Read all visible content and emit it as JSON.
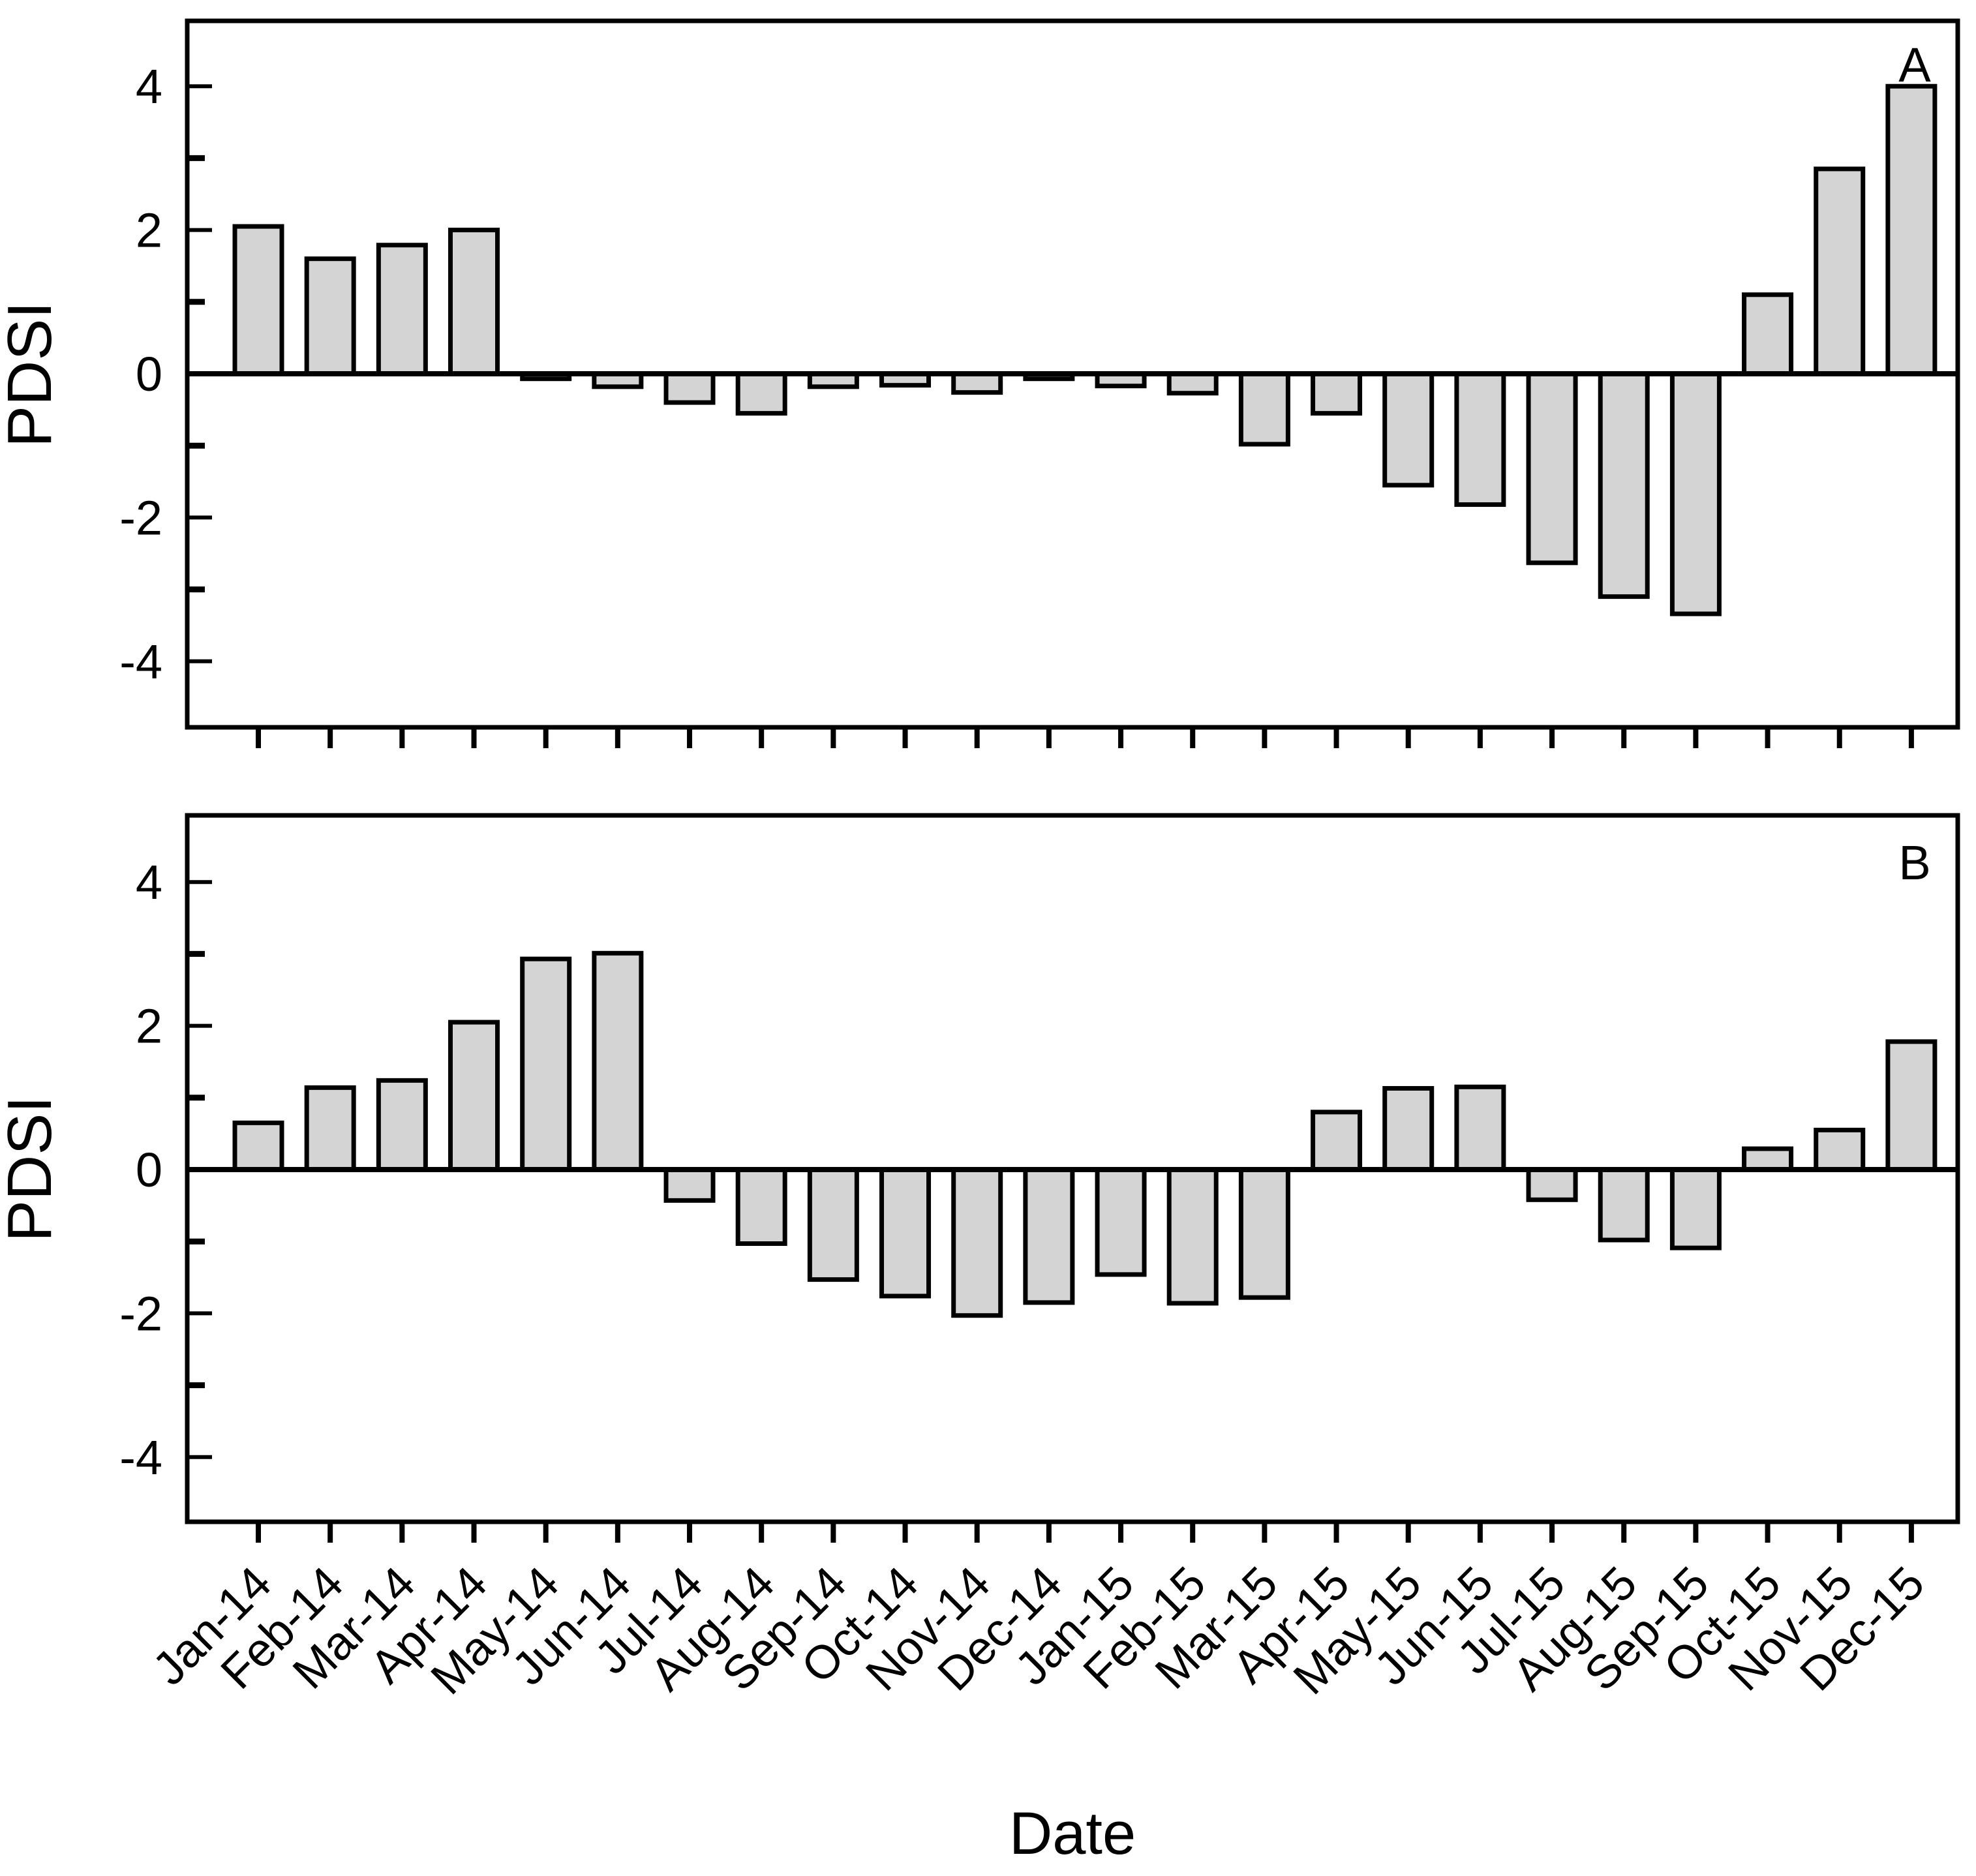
{
  "figure": {
    "panel_a_label": "A",
    "panel_b_label": "B",
    "y_axis_label_a": "PDSI",
    "y_axis_label_b": "PDSI",
    "x_axis_label": "Date",
    "colors": {
      "background": "#ffffff",
      "bar_fill": "#d4d4d4",
      "bar_stroke": "#000000",
      "axis": "#000000",
      "text": "#000000"
    }
  },
  "chart_data": [
    {
      "type": "bar",
      "panel": "A",
      "title": "",
      "xlabel": "Date",
      "ylabel": "PDSI",
      "ylim": [
        -5,
        5
      ],
      "grid": false,
      "legend": "none",
      "y_ticks_labeled": [
        -4,
        -2,
        0,
        2,
        4
      ],
      "y_ticks_minor": [
        -3,
        -1,
        1,
        3
      ],
      "y_tick_labels": [
        "-4",
        "-2",
        "0",
        "2",
        "4"
      ],
      "categories": [
        "Jan-14",
        "Feb-14",
        "Mar-14",
        "Apr-14",
        "May-14",
        "Jun-14",
        "Jul-14",
        "Aug-14",
        "Sep-14",
        "Oct-14",
        "Nov-14",
        "Dec-14",
        "Jan-15",
        "Feb-15",
        "Mar-15",
        "Apr-15",
        "May-15",
        "Jun-15",
        "Jul-15",
        "Aug-15",
        "Sep-15",
        "Oct-15",
        "Nov-15",
        "Dec-15"
      ],
      "values": [
        2.05,
        1.6,
        1.79,
        2.0,
        -0.07,
        -0.18,
        -0.4,
        -0.55,
        -0.18,
        -0.16,
        -0.26,
        -0.07,
        -0.17,
        -0.27,
        -0.98,
        -0.55,
        -1.55,
        -1.82,
        -2.63,
        -3.1,
        -3.34,
        1.1,
        2.85,
        4.0
      ]
    },
    {
      "type": "bar",
      "panel": "B",
      "title": "",
      "xlabel": "Date",
      "ylabel": "PDSI",
      "ylim": [
        -5,
        5
      ],
      "grid": false,
      "legend": "none",
      "y_ticks_labeled": [
        -4,
        -2,
        0,
        2,
        4
      ],
      "y_ticks_minor": [
        -3,
        -1,
        1,
        3
      ],
      "y_tick_labels": [
        "-4",
        "-2",
        "0",
        "2",
        "4"
      ],
      "categories": [
        "Jan-14",
        "Feb-14",
        "Mar-14",
        "Apr-14",
        "May-14",
        "Jun-14",
        "Jul-14",
        "Aug-14",
        "Sep-14",
        "Oct-14",
        "Nov-14",
        "Dec-14",
        "Jan-15",
        "Feb-15",
        "Mar-15",
        "Apr-15",
        "May-15",
        "Jun-15",
        "Jul-15",
        "Aug-15",
        "Sep-15",
        "Oct-15",
        "Nov-15",
        "Dec-15"
      ],
      "values": [
        0.65,
        1.14,
        1.24,
        2.05,
        2.93,
        3.01,
        -0.43,
        -1.03,
        -1.53,
        -1.76,
        -2.03,
        -1.85,
        -1.46,
        -1.86,
        -1.78,
        0.8,
        1.13,
        1.15,
        -0.42,
        -0.98,
        -1.09,
        0.29,
        0.55,
        1.78
      ]
    }
  ]
}
